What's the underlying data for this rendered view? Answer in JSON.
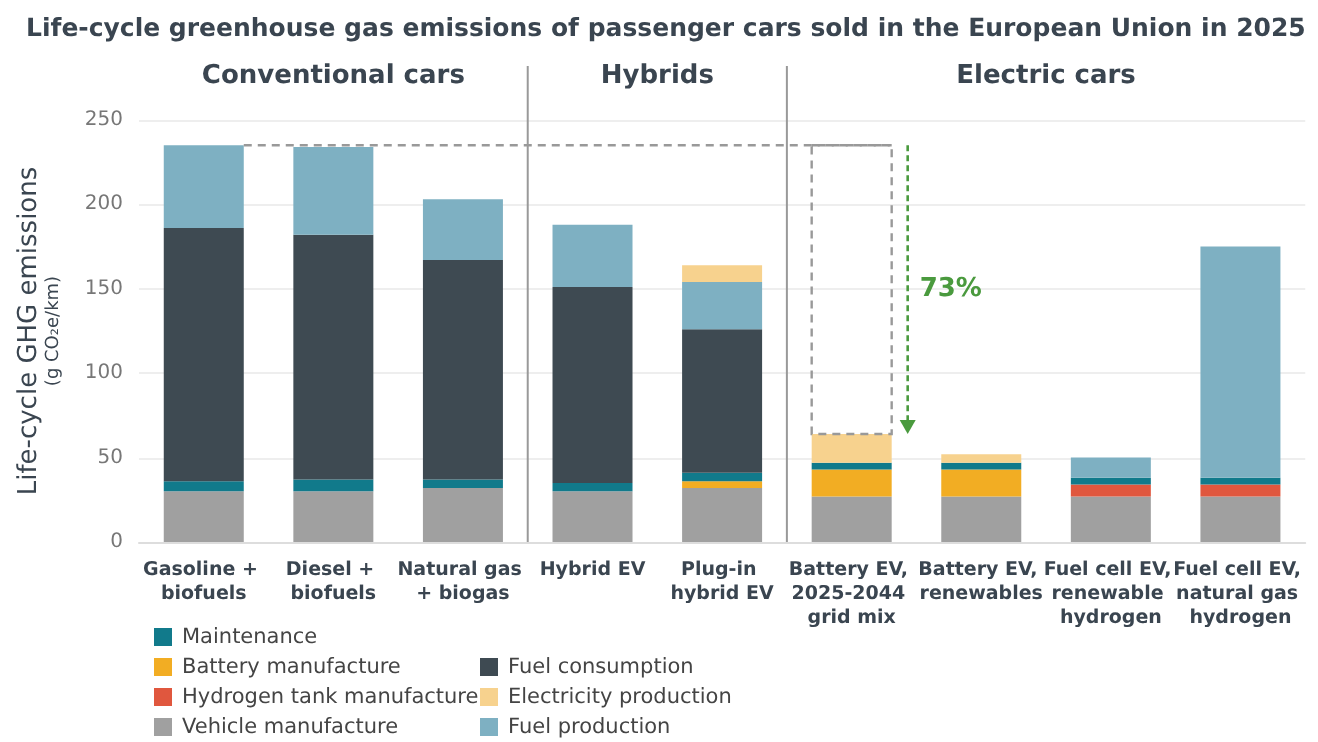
{
  "chart_data": {
    "type": "bar",
    "stacked": true,
    "title": "Life-cycle greenhouse gas emissions of passenger cars sold in the European Union in 2025",
    "ylabel": "Life-cycle GHG emissions\n(g CO₂e/km)",
    "categories": [
      "Gasoline + biofuels",
      "Diesel + biofuels",
      "Natural gas + biogas",
      "Hybrid EV",
      "Plug-in hybrid EV",
      "Battery EV, 2025-2044 grid mix",
      "Battery EV, renewables",
      "Fuel cell EV, renewable hydrogen",
      "Fuel cell EV, natural gas hydrogen"
    ],
    "series": [
      {
        "name": "Vehicle manufacture",
        "color": "#a0a0a0",
        "values": [
          30,
          30,
          32,
          30,
          32,
          27,
          27,
          27,
          27
        ]
      },
      {
        "name": "Battery manufacture",
        "color": "#f2ad23",
        "values": [
          null,
          null,
          null,
          null,
          4,
          16,
          16,
          null,
          null
        ]
      },
      {
        "name": "Hydrogen tank manufacture",
        "color": "#e0573e",
        "values": [
          null,
          null,
          null,
          null,
          null,
          null,
          null,
          7,
          7
        ]
      },
      {
        "name": "Maintenance",
        "color": "#117a8b",
        "values": [
          6,
          7,
          5,
          5,
          5,
          4,
          4,
          4,
          4
        ]
      },
      {
        "name": "Fuel consumption",
        "color": "#3e4a52",
        "values": [
          150,
          145,
          130,
          116,
          85,
          null,
          null,
          null,
          null
        ]
      },
      {
        "name": "Fuel production",
        "color": "#7eb0c2",
        "values": [
          49,
          52,
          36,
          37,
          28,
          null,
          null,
          12,
          137
        ]
      },
      {
        "name": "Electricity production",
        "color": "#f7d28e",
        "values": [
          null,
          null,
          null,
          null,
          10,
          17,
          5,
          null,
          null
        ]
      }
    ],
    "ylim": [
      0,
      250
    ],
    "yticks": [
      0,
      50,
      100,
      150,
      200,
      250
    ],
    "grid": "y",
    "legend": "bottom left",
    "ref_lines": [
      {
        "axis": "y",
        "value": 235,
        "color": "#999999",
        "line_style": "dashed"
      }
    ],
    "annotations": [
      "Conventional cars",
      "Hybrids",
      "Electric cars",
      "73%"
    ]
  }
}
